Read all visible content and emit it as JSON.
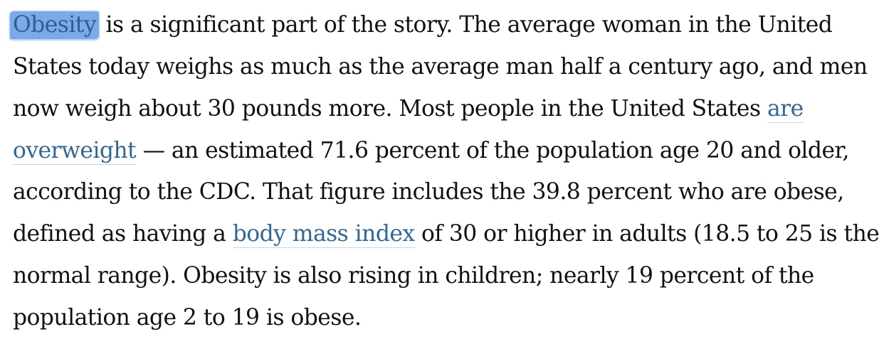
{
  "paragraph": {
    "line1": {
      "highlighted_link": "Obesity",
      "rest": " is a significant part of the story. The average woman in the United"
    },
    "line2": "States today weighs as much as the average man half a century ago, and men",
    "line3": {
      "text": "now weigh about 30 pounds more. Most people in the United States ",
      "link_part1": "are"
    },
    "line4": {
      "link_part2": "overweight",
      "rest": " — an estimated 71.6 percent of the population age 20 and older,"
    },
    "line5": "according to the CDC. That figure includes the 39.8 percent who are obese,",
    "line6": {
      "before": "defined as having a ",
      "link": "body mass index",
      "after": " of 30 or higher in adults (18.5 to 25 is the"
    },
    "line7": "normal range). Obesity is also rising in children; nearly 19 percent of the",
    "line8": "population age 2 to 19 is obese."
  },
  "colors": {
    "text": "#111111",
    "link": "#326891",
    "highlight": "#7aaae8"
  }
}
